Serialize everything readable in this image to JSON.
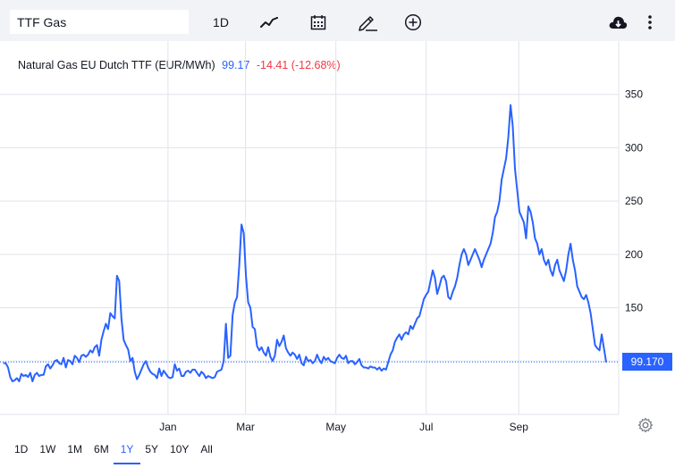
{
  "toolbar": {
    "symbol_value": "TTF Gas",
    "interval_label": "1D",
    "icons": [
      "chart-line-icon",
      "calendar-icon",
      "pencil-icon",
      "add-circle-icon",
      "cloud-download-icon",
      "more-vertical-icon"
    ]
  },
  "legend": {
    "name": "Natural Gas EU Dutch TTF (EUR/MWh)",
    "last": "99.17",
    "change": "-14.41 (-12.68%)"
  },
  "price_label": "99.170",
  "ranges": [
    "1D",
    "1W",
    "1M",
    "6M",
    "1Y",
    "5Y",
    "10Y",
    "All"
  ],
  "active_range": "1Y",
  "colors": {
    "line": "#2962ff",
    "down": "#f23645",
    "grid": "#e0e3eb",
    "toolbar_bg": "#f1f3f6"
  },
  "chart_data": {
    "type": "line",
    "title": "Natural Gas EU Dutch TTF (EUR/MWh)",
    "xlabel": "",
    "ylabel": "",
    "ylim": [
      50,
      400
    ],
    "yticks": [
      150,
      200,
      250,
      300,
      350
    ],
    "xticks": [
      "Jan",
      "Mar",
      "May",
      "Jul",
      "Sep"
    ],
    "grid": true,
    "last_value": 99.17,
    "reference_line": 99.17,
    "series": [
      {
        "values": [
          98,
          98,
          94,
          85,
          81,
          82,
          84,
          81,
          88,
          86,
          87,
          85,
          89,
          81,
          87,
          89,
          86,
          87,
          87,
          95,
          97,
          93,
          96,
          100,
          101,
          98,
          97,
          103,
          94,
          101,
          100,
          97,
          105,
          103,
          99,
          105,
          106,
          104,
          106,
          110,
          108,
          113,
          115,
          105,
          120,
          128,
          135,
          130,
          145,
          142,
          140,
          180,
          175,
          140,
          120,
          115,
          111,
          100,
          103,
          90,
          83,
          87,
          92,
          97,
          100,
          94,
          90,
          88,
          87,
          84,
          93,
          86,
          91,
          88,
          85,
          84,
          85,
          97,
          91,
          93,
          86,
          86,
          90,
          91,
          89,
          92,
          92,
          89,
          86,
          90,
          88,
          84,
          86,
          85,
          84,
          85,
          90,
          91,
          92,
          100,
          135,
          103,
          105,
          143,
          155,
          160,
          190,
          228,
          220,
          180,
          155,
          150,
          132,
          130,
          114,
          110,
          113,
          108,
          105,
          113,
          104,
          100,
          105,
          120,
          114,
          118,
          124,
          112,
          108,
          105,
          108,
          106,
          102,
          106,
          98,
          96,
          104,
          100,
          101,
          98,
          100,
          106,
          101,
          98,
          104,
          101,
          103,
          100,
          99,
          98,
          103,
          106,
          103,
          102,
          105,
          98,
          100,
          100,
          97,
          99,
          102,
          96,
          94,
          94,
          93,
          95,
          94,
          94,
          92,
          94,
          91,
          93,
          92,
          99,
          106,
          110,
          118,
          122,
          125,
          120,
          125,
          127,
          125,
          133,
          130,
          135,
          140,
          142,
          150,
          158,
          162,
          165,
          175,
          185,
          178,
          163,
          170,
          178,
          180,
          175,
          160,
          158,
          165,
          170,
          178,
          190,
          200,
          205,
          200,
          190,
          195,
          200,
          205,
          200,
          195,
          188,
          195,
          200,
          205,
          210,
          220,
          235,
          240,
          250,
          270,
          280,
          290,
          310,
          340,
          320,
          280,
          260,
          240,
          235,
          230,
          215,
          245,
          240,
          230,
          215,
          210,
          200,
          205,
          195,
          190,
          195,
          185,
          180,
          190,
          195,
          185,
          180,
          175,
          185,
          200,
          210,
          195,
          185,
          170,
          165,
          160,
          158,
          162,
          155,
          145,
          130,
          115,
          112,
          110,
          125,
          112,
          99
        ]
      }
    ]
  }
}
